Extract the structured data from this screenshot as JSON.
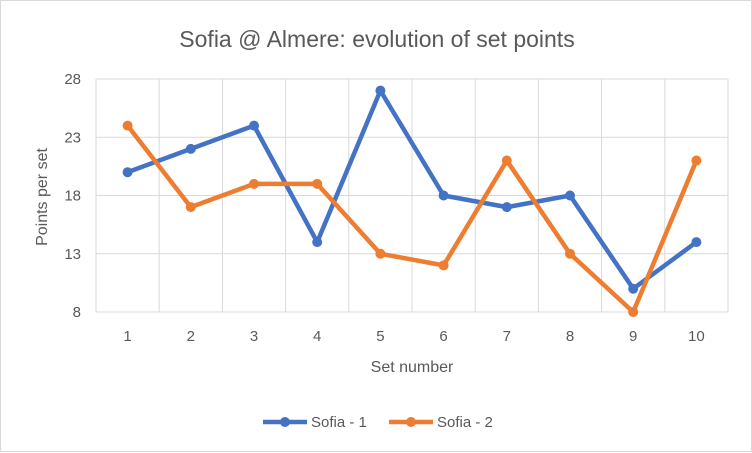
{
  "chart_data": {
    "type": "line",
    "title": "Sofia @ Almere: evolution of set points",
    "xlabel": "Set number",
    "ylabel": "Points per set",
    "categories": [
      "1",
      "2",
      "3",
      "4",
      "5",
      "6",
      "7",
      "8",
      "9",
      "10"
    ],
    "yticks": [
      "8",
      "13",
      "18",
      "23",
      "28"
    ],
    "ylim": [
      8,
      28
    ],
    "grid": true,
    "legend_position": "bottom",
    "series": [
      {
        "name": "Sofia - 1",
        "color": "#4472C4",
        "values": [
          20,
          22,
          24,
          14,
          27,
          18,
          17,
          18,
          10,
          14
        ]
      },
      {
        "name": "Sofia - 2",
        "color": "#ED7D31",
        "values": [
          24,
          17,
          19,
          19,
          13,
          12,
          21,
          13,
          8,
          21
        ]
      }
    ]
  }
}
